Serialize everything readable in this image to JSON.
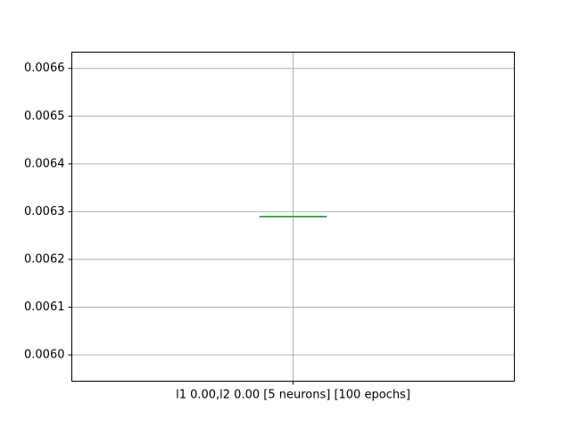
{
  "chart_data": {
    "type": "box",
    "categories": [
      "l1 0.00,l2 0.00 [5 neurons] [100 epochs]"
    ],
    "series": [
      {
        "values": [
          {
            "min": 0.00629,
            "q1": 0.00629,
            "median": 0.00629,
            "q3": 0.00629,
            "max": 0.00629
          }
        ]
      }
    ],
    "ylim": [
      0.005945,
      0.006634
    ],
    "yticks": [
      "0.0060",
      "0.0061",
      "0.0062",
      "0.0063",
      "0.0064",
      "0.0065",
      "0.0066"
    ],
    "grid": true,
    "colors": {
      "median": "#2ca02c",
      "box": "#1f77b4",
      "grid": "#b0b0b0",
      "axes": "#000000"
    }
  }
}
